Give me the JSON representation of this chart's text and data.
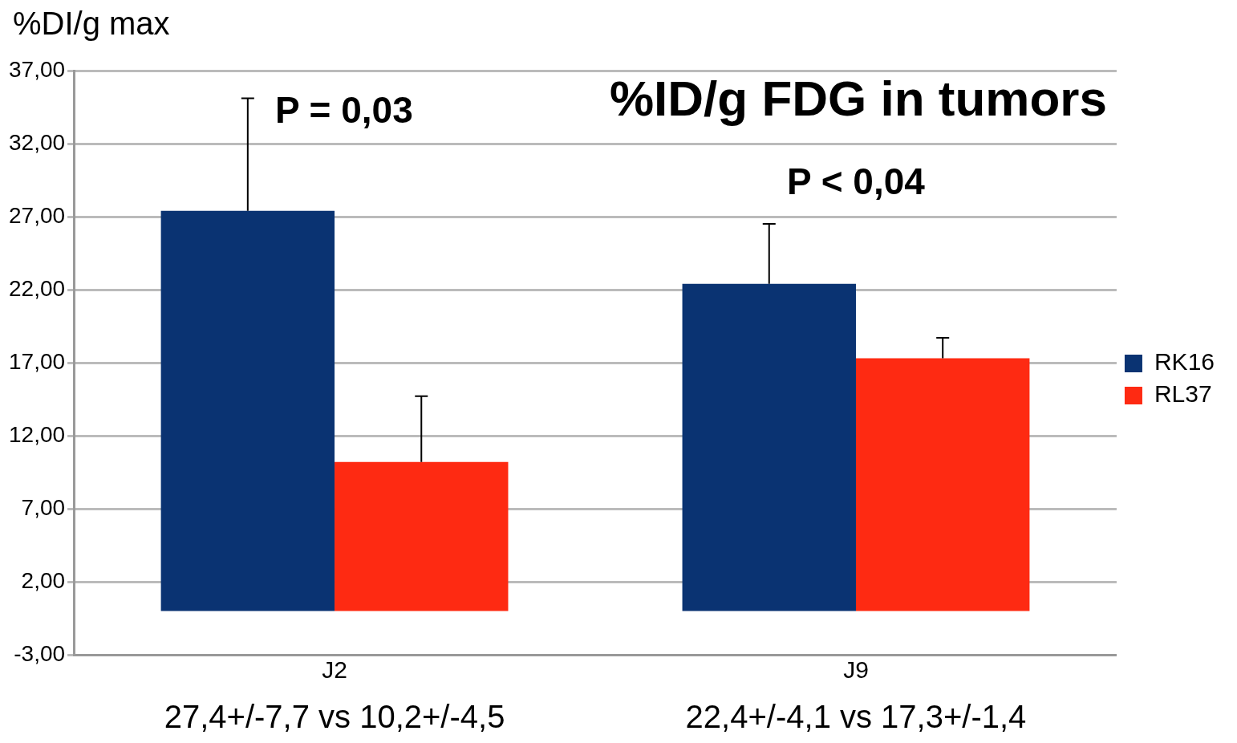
{
  "chart_data": {
    "type": "bar",
    "title": "%ID/g FDG in tumors",
    "ylabel": "%DI/g max",
    "categories": [
      "J2",
      "J9"
    ],
    "series": [
      {
        "name": "RK16",
        "color": "#0a3372",
        "values": [
          27.4,
          22.4
        ],
        "errors": [
          [
            27.4,
            35.1
          ],
          [
            22.4,
            26.5
          ]
        ]
      },
      {
        "name": "RL37",
        "color": "#fe2a12",
        "values": [
          10.2,
          17.3
        ],
        "errors": [
          [
            10.2,
            14.7
          ],
          [
            17.3,
            18.7
          ]
        ]
      }
    ],
    "ylim": [
      -3,
      37
    ],
    "yticks": [
      {
        "value": -3,
        "label": "-3,00"
      },
      {
        "value": 2,
        "label": "2,00"
      },
      {
        "value": 7,
        "label": "7,00"
      },
      {
        "value": 12,
        "label": "12,00"
      },
      {
        "value": 17,
        "label": "17,00"
      },
      {
        "value": 22,
        "label": "22,00"
      },
      {
        "value": 27,
        "label": "27,00"
      },
      {
        "value": 32,
        "label": "32,00"
      },
      {
        "value": 37,
        "label": "37,00"
      }
    ],
    "grid": "y",
    "legend": "right",
    "annotations": [
      "P = 0,03",
      "P < 0,04",
      "27,4+/-7,7 vs 10,2+/-4,5",
      "22,4+/-4,1 vs 17,3+/-1,4"
    ]
  }
}
